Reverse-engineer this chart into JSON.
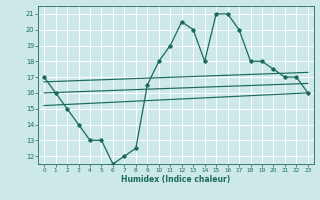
{
  "main_x": [
    0,
    1,
    2,
    3,
    4,
    5,
    6,
    7,
    8,
    9,
    10,
    11,
    12,
    13,
    14,
    15,
    16,
    17,
    18,
    19,
    20,
    21,
    22,
    23
  ],
  "main_y": [
    17,
    16,
    15,
    14,
    13,
    13,
    11.5,
    12,
    12.5,
    16.5,
    18,
    19,
    20.5,
    20,
    18,
    21,
    21,
    20,
    18,
    18,
    17.5,
    17,
    17,
    16
  ],
  "line1_x": [
    0,
    23
  ],
  "line1_y": [
    16.7,
    17.3
  ],
  "line2_x": [
    0,
    23
  ],
  "line2_y": [
    16.0,
    16.6
  ],
  "line3_x": [
    0,
    23
  ],
  "line3_y": [
    15.2,
    16.0
  ],
  "bg_color": "#cce8e8",
  "grid_color": "#ffffff",
  "line_color": "#1a6b5a",
  "xlim": [
    -0.5,
    23.5
  ],
  "ylim": [
    11.5,
    21.5
  ],
  "yticks": [
    12,
    13,
    14,
    15,
    16,
    17,
    18,
    19,
    20,
    21
  ],
  "xticks": [
    0,
    1,
    2,
    3,
    4,
    5,
    6,
    7,
    8,
    9,
    10,
    11,
    12,
    13,
    14,
    15,
    16,
    17,
    18,
    19,
    20,
    21,
    22,
    23
  ],
  "xlabel": "Humidex (Indice chaleur)"
}
